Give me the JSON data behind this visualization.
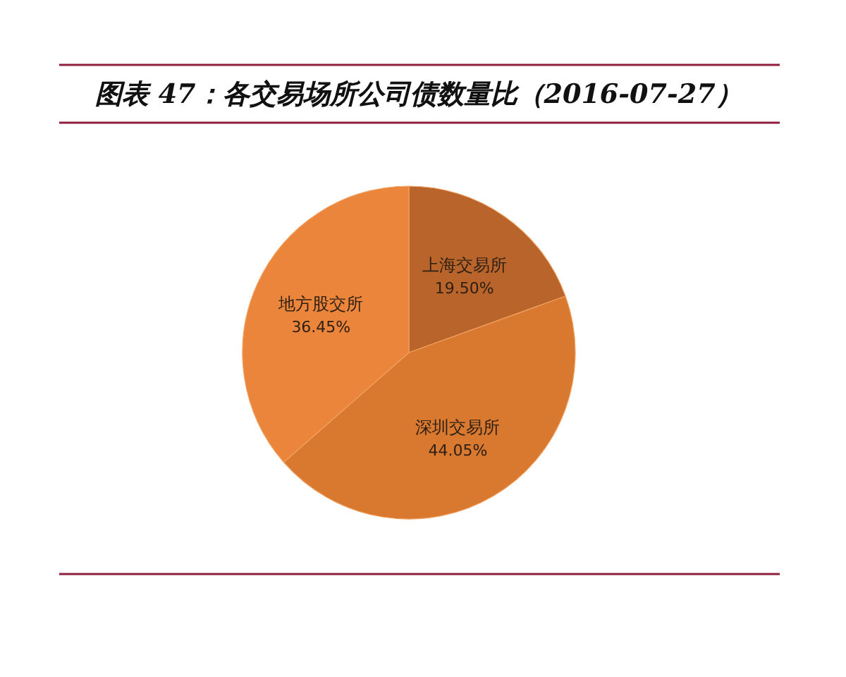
{
  "chart_data": {
    "type": "pie",
    "title": "图表 47：各交易场所公司债数量比（2016-07-27）",
    "categories": [
      "上海交易所",
      "深圳交易所",
      "地方股交所"
    ],
    "values": [
      19.5,
      44.05,
      36.45
    ],
    "colors": [
      "#b9642a",
      "#d9782f",
      "#eb853b"
    ],
    "value_labels": [
      "19.50%",
      "44.05%",
      "36.45%"
    ]
  }
}
